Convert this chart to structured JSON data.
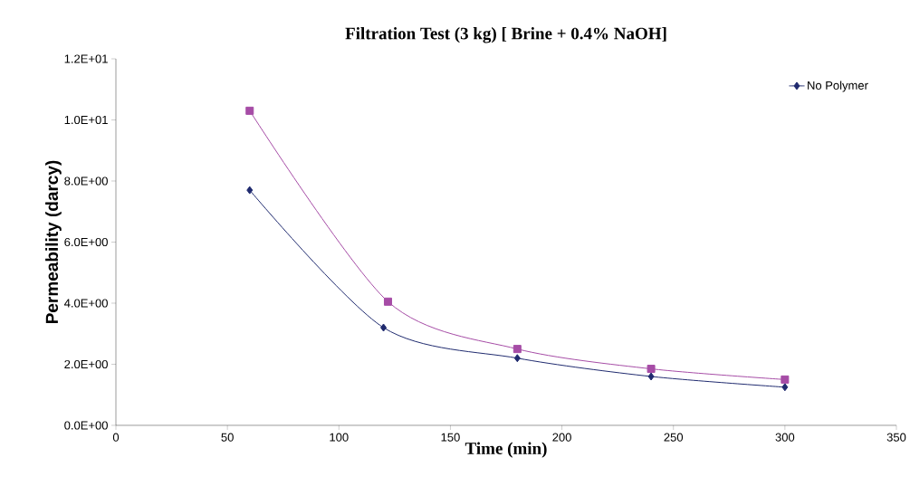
{
  "chart_data": {
    "type": "line",
    "title": "Filtration Test (3 kg)  [ Brine + 0.4% NaOH]",
    "xlabel": "Time (min)",
    "ylabel": "Permeability (darcy)",
    "xlim": [
      0,
      350
    ],
    "xticks": [
      0,
      50,
      100,
      150,
      200,
      250,
      300,
      350
    ],
    "ylim": [
      0,
      12
    ],
    "yticks": [
      {
        "value": 0,
        "label": "0.0E+00"
      },
      {
        "value": 2,
        "label": "2.0E+00"
      },
      {
        "value": 4,
        "label": "4.0E+00"
      },
      {
        "value": 6,
        "label": "6.0E+00"
      },
      {
        "value": 8,
        "label": "8.0E+00"
      },
      {
        "value": 10,
        "label": "1.0E+01"
      },
      {
        "value": 12,
        "label": "1.2E+01"
      }
    ],
    "legend": "top right",
    "grid": false,
    "series": [
      {
        "name": "No Polymer",
        "color": "#1f2a6e",
        "marker": "diamond",
        "x": [
          60,
          120,
          180,
          240,
          300
        ],
        "values": [
          7.7,
          3.2,
          2.2,
          1.6,
          1.25
        ]
      },
      {
        "color": "#a64ca6",
        "marker": "square",
        "x": [
          60,
          122,
          180,
          240,
          300
        ],
        "values": [
          10.3,
          4.05,
          2.5,
          1.85,
          1.5
        ]
      }
    ]
  }
}
